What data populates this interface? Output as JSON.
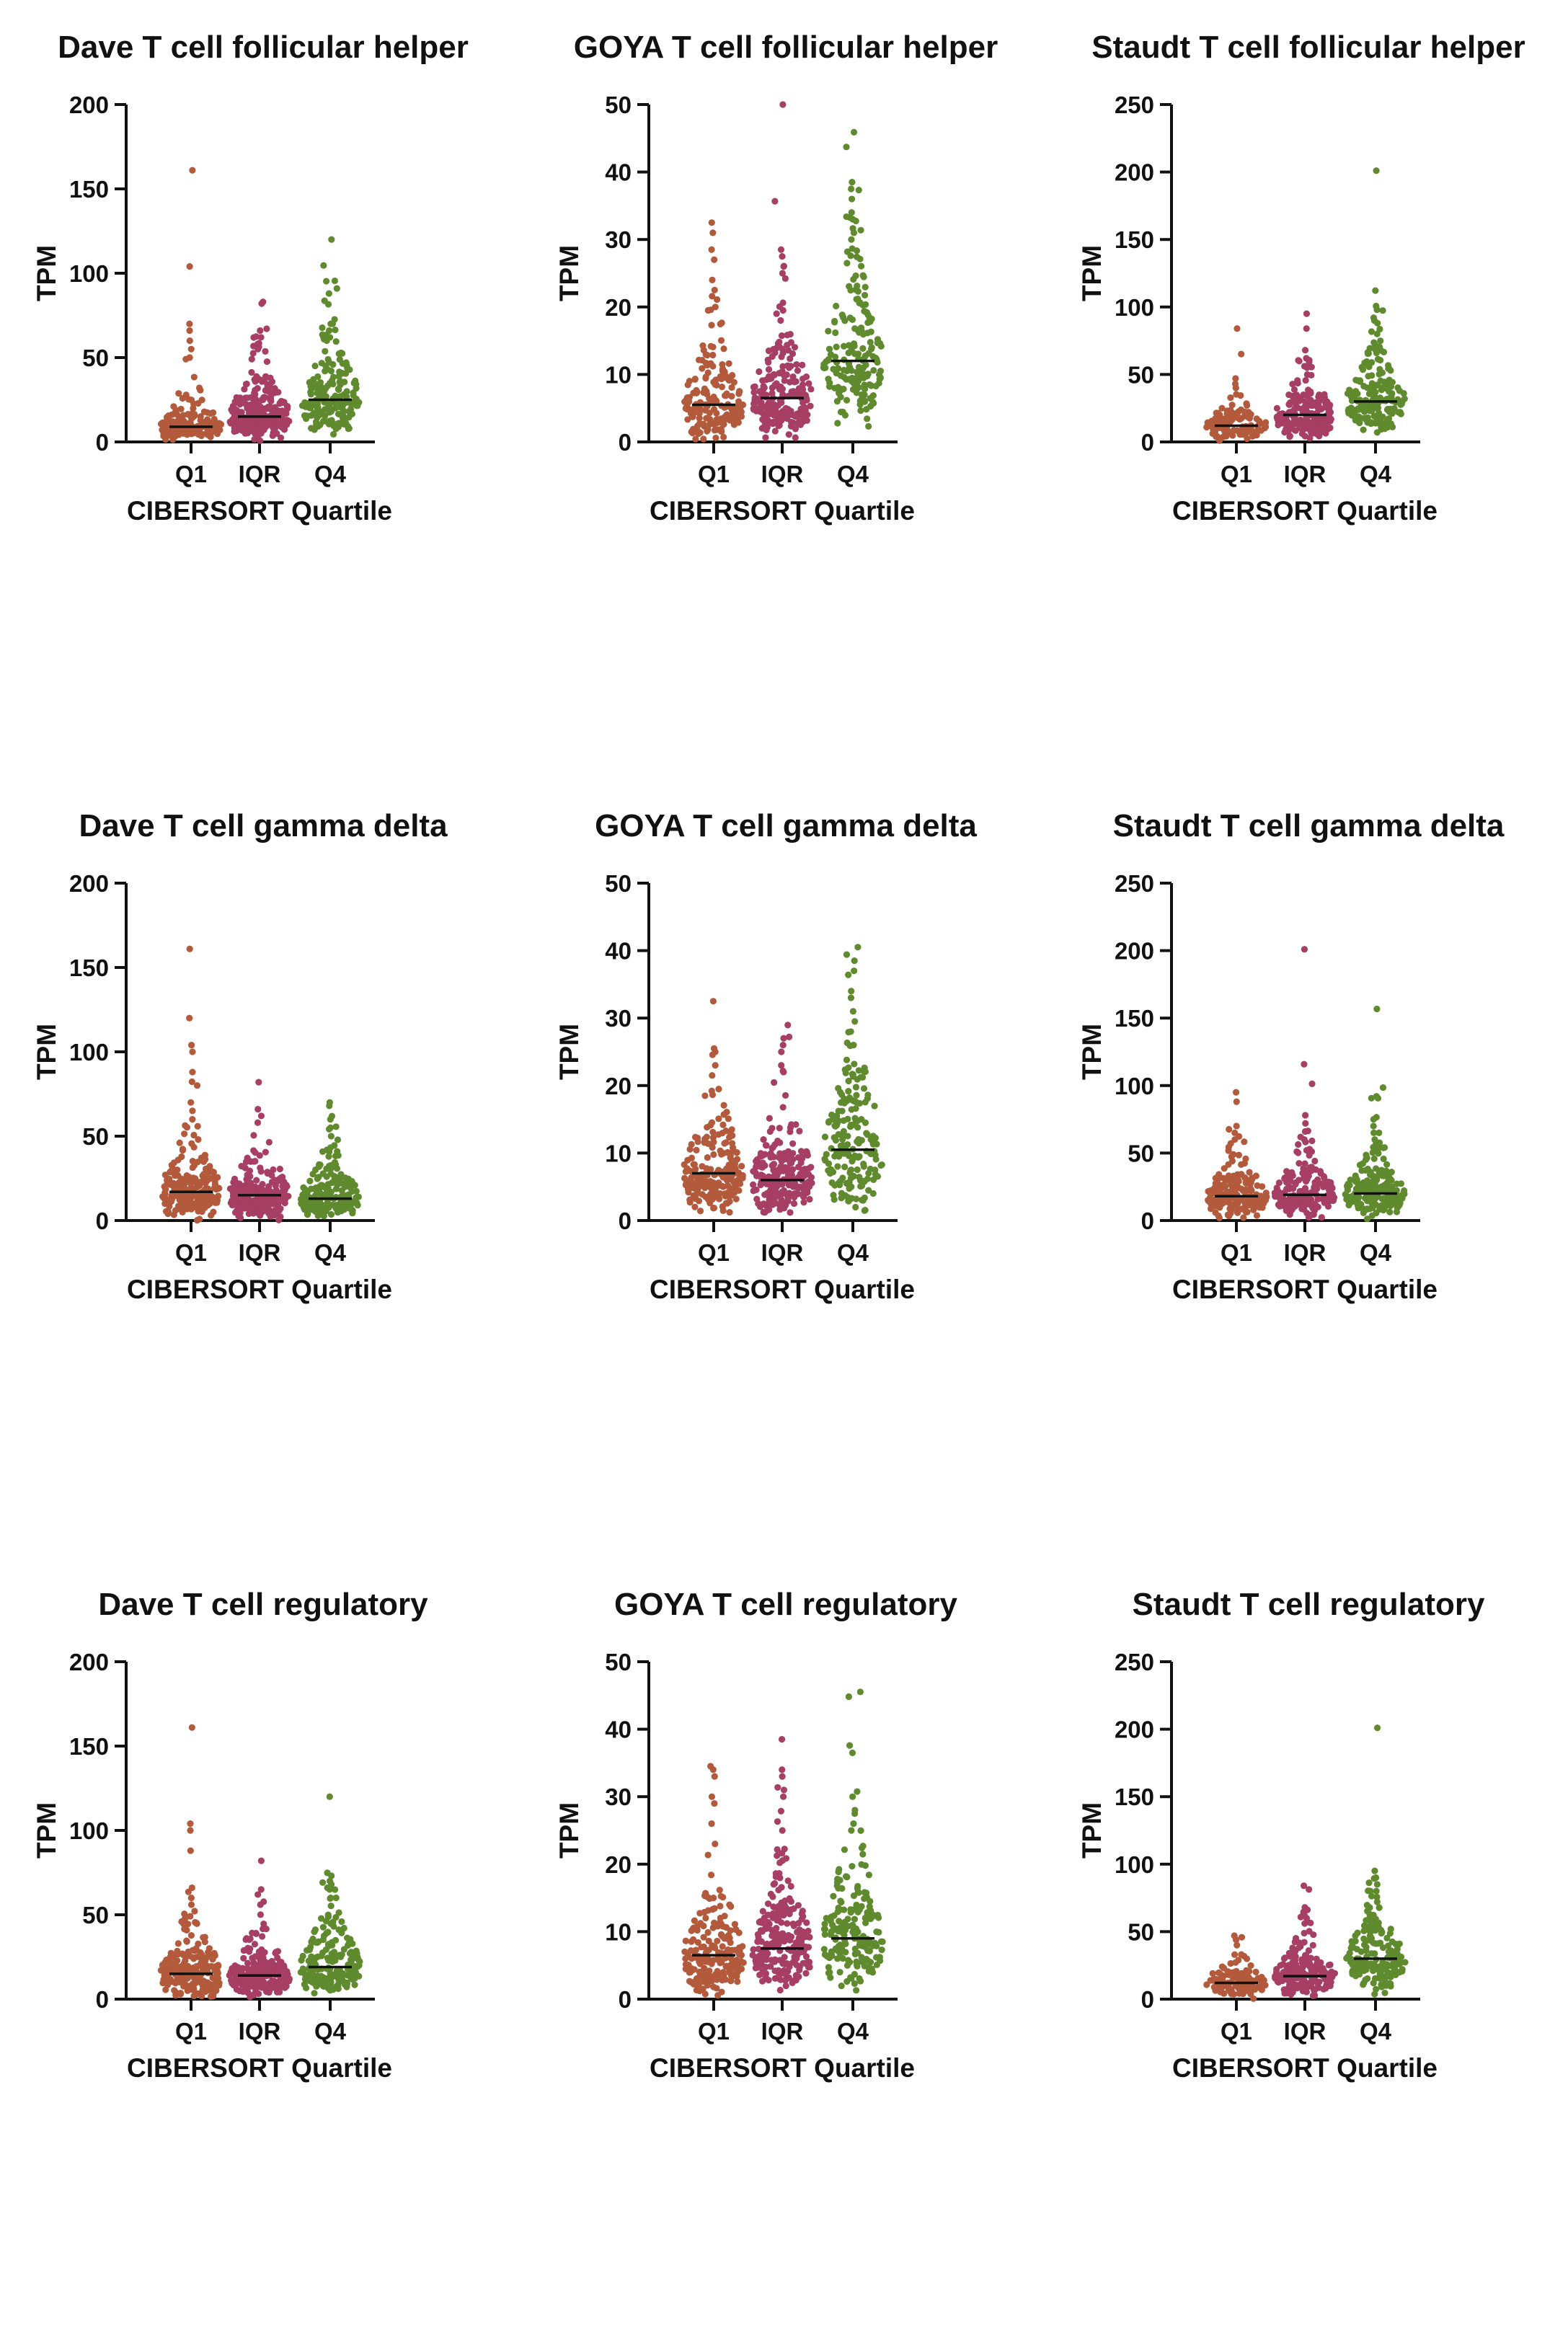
{
  "chart_data": [
    {
      "type": "scatter",
      "title": "Dave T cell follicular helper",
      "ylabel": "TPM",
      "xlabel": "CIBERSORT Quartile",
      "categories": [
        "Q1",
        "IQR",
        "Q4"
      ],
      "ylim": [
        0,
        200
      ],
      "yticks": [
        0,
        50,
        100,
        150,
        200
      ],
      "series": [
        {
          "category": "Q1",
          "color": "#b35a3c",
          "median": 9,
          "spread": 10,
          "count": 160,
          "outliers": [
            161,
            104,
            70,
            66,
            60,
            55,
            50
          ]
        },
        {
          "category": "IQR",
          "color": "#a63f63",
          "median": 15,
          "spread": 12,
          "count": 260,
          "outliers": [
            82,
            66,
            62,
            58,
            55
          ]
        },
        {
          "category": "Q4",
          "color": "#5f8a2e",
          "median": 25,
          "spread": 14,
          "count": 180,
          "outliers": [
            120,
            88,
            70,
            66,
            62
          ]
        }
      ]
    },
    {
      "type": "scatter",
      "title": "GOYA T cell follicular helper",
      "ylabel": "TPM",
      "xlabel": "CIBERSORT Quartile",
      "categories": [
        "Q1",
        "IQR",
        "Q4"
      ],
      "ylim": [
        0,
        50
      ],
      "yticks": [
        0,
        10,
        20,
        30,
        40,
        50
      ],
      "series": [
        {
          "category": "Q1",
          "color": "#b35a3c",
          "median": 5.5,
          "spread": 4,
          "count": 180,
          "outliers": [
            32.5,
            31,
            28.5,
            27,
            24,
            22.5,
            20
          ]
        },
        {
          "category": "IQR",
          "color": "#a63f63",
          "median": 6.5,
          "spread": 4,
          "count": 200,
          "outliers": [
            28.5,
            27.5,
            26,
            25,
            19.5,
            18
          ]
        },
        {
          "category": "Q4",
          "color": "#5f8a2e",
          "median": 12,
          "spread": 6,
          "count": 180,
          "outliers": [
            38.5,
            37.5,
            36,
            34,
            33,
            31,
            30
          ]
        }
      ]
    },
    {
      "type": "scatter",
      "title": "Staudt T cell follicular helper",
      "ylabel": "TPM",
      "xlabel": "CIBERSORT Quartile",
      "categories": [
        "Q1",
        "IQR",
        "Q4"
      ],
      "ylim": [
        0,
        250
      ],
      "yticks": [
        0,
        50,
        100,
        150,
        200,
        250
      ],
      "series": [
        {
          "category": "Q1",
          "color": "#b35a3c",
          "median": 12,
          "spread": 8,
          "count": 110,
          "outliers": [
            84,
            47,
            43,
            40
          ]
        },
        {
          "category": "IQR",
          "color": "#a63f63",
          "median": 20,
          "spread": 12,
          "count": 200,
          "outliers": [
            95,
            84,
            68,
            62,
            55
          ]
        },
        {
          "category": "Q4",
          "color": "#5f8a2e",
          "median": 30,
          "spread": 14,
          "count": 170,
          "outliers": [
            201,
            92,
            88,
            80,
            72,
            66
          ]
        }
      ]
    },
    {
      "type": "scatter",
      "title": "Dave T cell gamma delta",
      "ylabel": "TPM",
      "xlabel": "CIBERSORT Quartile",
      "categories": [
        "Q1",
        "IQR",
        "Q4"
      ],
      "ylim": [
        0,
        200
      ],
      "yticks": [
        0,
        50,
        100,
        150,
        200
      ],
      "series": [
        {
          "category": "Q1",
          "color": "#b35a3c",
          "median": 17,
          "spread": 14,
          "count": 200,
          "outliers": [
            161,
            120,
            104,
            100,
            88,
            70,
            65,
            60
          ]
        },
        {
          "category": "IQR",
          "color": "#a63f63",
          "median": 15,
          "spread": 13,
          "count": 220,
          "outliers": [
            82,
            66,
            62,
            58
          ]
        },
        {
          "category": "Q4",
          "color": "#5f8a2e",
          "median": 13,
          "spread": 10,
          "count": 200,
          "outliers": [
            70,
            68,
            60,
            55,
            50
          ]
        }
      ]
    },
    {
      "type": "scatter",
      "title": "GOYA T cell gamma delta",
      "ylabel": "TPM",
      "xlabel": "CIBERSORT Quartile",
      "categories": [
        "Q1",
        "IQR",
        "Q4"
      ],
      "ylim": [
        0,
        50
      ],
      "yticks": [
        0,
        10,
        20,
        30,
        40,
        50
      ],
      "series": [
        {
          "category": "Q1",
          "color": "#b35a3c",
          "median": 7,
          "spread": 5,
          "count": 200,
          "outliers": [
            32.5,
            25.5,
            25,
            23,
            21.5
          ]
        },
        {
          "category": "IQR",
          "color": "#a63f63",
          "median": 6,
          "spread": 5,
          "count": 220,
          "outliers": [
            27,
            26,
            25,
            23,
            22
          ]
        },
        {
          "category": "Q4",
          "color": "#5f8a2e",
          "median": 10.5,
          "spread": 6,
          "count": 180,
          "outliers": [
            38.5,
            37,
            34,
            33,
            31,
            29.5,
            28,
            26
          ]
        }
      ]
    },
    {
      "type": "scatter",
      "title": "Staudt T cell gamma delta",
      "ylabel": "TPM",
      "xlabel": "CIBERSORT Quartile",
      "categories": [
        "Q1",
        "IQR",
        "Q4"
      ],
      "ylim": [
        0,
        250
      ],
      "yticks": [
        0,
        50,
        100,
        150,
        200,
        250
      ],
      "series": [
        {
          "category": "Q1",
          "color": "#b35a3c",
          "median": 18,
          "spread": 12,
          "count": 180,
          "outliers": [
            95,
            88,
            70,
            65,
            60
          ]
        },
        {
          "category": "IQR",
          "color": "#a63f63",
          "median": 19,
          "spread": 13,
          "count": 180,
          "outliers": [
            201,
            78,
            72,
            66,
            60
          ]
        },
        {
          "category": "Q4",
          "color": "#5f8a2e",
          "median": 20,
          "spread": 13,
          "count": 200,
          "outliers": [
            92,
            75,
            70,
            65,
            60
          ]
        }
      ]
    },
    {
      "type": "scatter",
      "title": "Dave T cell regulatory",
      "ylabel": "TPM",
      "xlabel": "CIBERSORT Quartile",
      "categories": [
        "Q1",
        "IQR",
        "Q4"
      ],
      "ylim": [
        0,
        200
      ],
      "yticks": [
        0,
        50,
        100,
        150,
        200
      ],
      "series": [
        {
          "category": "Q1",
          "color": "#b35a3c",
          "median": 15,
          "spread": 13,
          "count": 200,
          "outliers": [
            161,
            104,
            100,
            88,
            66,
            60,
            56
          ]
        },
        {
          "category": "IQR",
          "color": "#a63f63",
          "median": 14,
          "spread": 12,
          "count": 220,
          "outliers": [
            82,
            65,
            62,
            56
          ]
        },
        {
          "category": "Q4",
          "color": "#5f8a2e",
          "median": 19,
          "spread": 14,
          "count": 200,
          "outliers": [
            120,
            70,
            68,
            65,
            60
          ]
        }
      ]
    },
    {
      "type": "scatter",
      "title": "GOYA T cell regulatory",
      "ylabel": "TPM",
      "xlabel": "CIBERSORT Quartile",
      "categories": [
        "Q1",
        "IQR",
        "Q4"
      ],
      "ylim": [
        0,
        50
      ],
      "yticks": [
        0,
        10,
        20,
        30,
        40,
        50
      ],
      "series": [
        {
          "category": "Q1",
          "color": "#b35a3c",
          "median": 6.5,
          "spread": 5,
          "count": 200,
          "outliers": [
            34,
            33,
            30,
            29,
            26,
            23
          ]
        },
        {
          "category": "IQR",
          "color": "#a63f63",
          "median": 7.5,
          "spread": 5,
          "count": 220,
          "outliers": [
            38.5,
            34,
            33,
            31,
            30,
            25
          ]
        },
        {
          "category": "Q4",
          "color": "#5f8a2e",
          "median": 9,
          "spread": 6,
          "count": 180,
          "outliers": [
            36.5,
            30,
            28,
            27.5,
            26,
            25
          ]
        }
      ]
    },
    {
      "type": "scatter",
      "title": "Staudt T cell regulatory",
      "ylabel": "TPM",
      "xlabel": "CIBERSORT Quartile",
      "categories": [
        "Q1",
        "IQR",
        "Q4"
      ],
      "ylim": [
        0,
        250
      ],
      "yticks": [
        0,
        50,
        100,
        150,
        200,
        250
      ],
      "series": [
        {
          "category": "Q1",
          "color": "#b35a3c",
          "median": 12,
          "spread": 8,
          "count": 110,
          "outliers": [
            47,
            44,
            40
          ]
        },
        {
          "category": "IQR",
          "color": "#a63f63",
          "median": 17,
          "spread": 11,
          "count": 180,
          "outliers": [
            84,
            68,
            62,
            56
          ]
        },
        {
          "category": "Q4",
          "color": "#5f8a2e",
          "median": 30,
          "spread": 14,
          "count": 180,
          "outliers": [
            201,
            95,
            90,
            85,
            80,
            72
          ]
        }
      ]
    }
  ]
}
